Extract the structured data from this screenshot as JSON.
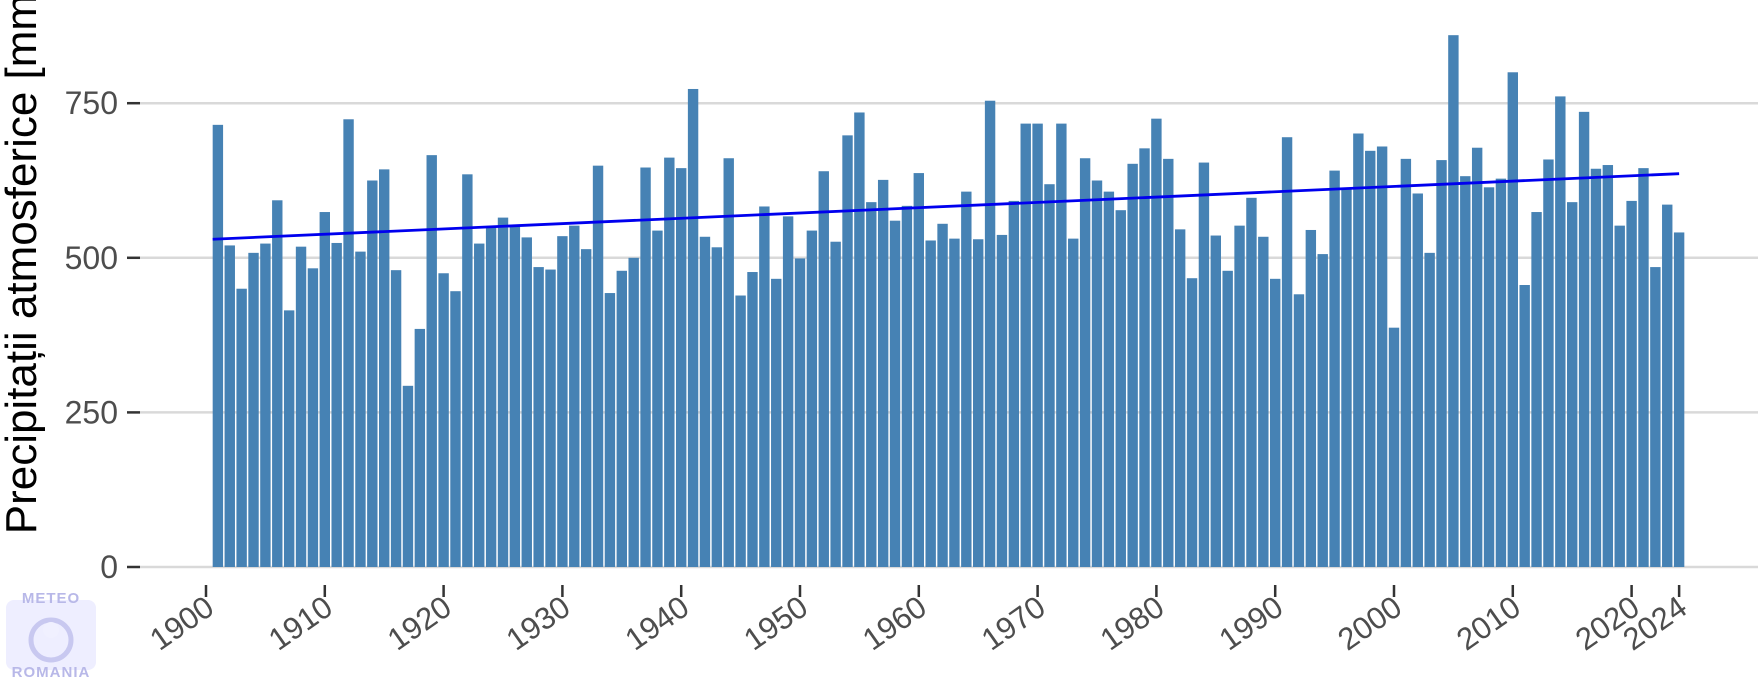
{
  "colors": {
    "bar": "#4682b4",
    "trend": "#0000ee",
    "grid": "#d9d9d9",
    "tick_text": "#4d4d4d"
  },
  "logo": {
    "top": "METEO",
    "bottom": "ROMANIA",
    "icon": "meteo-romania-logo-icon"
  },
  "chart_data": {
    "type": "bar",
    "title": "",
    "xlabel": "",
    "ylabel": "Precipitații atmosferice [mm]",
    "ylim": [
      0,
      900
    ],
    "xlim": [
      1900,
      2024
    ],
    "yticks": [
      0,
      250,
      500,
      750
    ],
    "ytick_labels": [
      "0",
      "250",
      "500",
      "750"
    ],
    "xticks": [
      1900,
      1910,
      1920,
      1930,
      1940,
      1950,
      1960,
      1970,
      1980,
      1990,
      2000,
      2010,
      2020,
      2024
    ],
    "xtick_labels": [
      "1900",
      "1910",
      "1920",
      "1930",
      "1940",
      "1950",
      "1960",
      "1970",
      "1980",
      "1990",
      "2000",
      "2010",
      "2020",
      "2024"
    ],
    "grid": "horizontal",
    "legend": "none",
    "x": [
      1901,
      1902,
      1903,
      1904,
      1905,
      1906,
      1907,
      1908,
      1909,
      1910,
      1911,
      1912,
      1913,
      1914,
      1915,
      1916,
      1917,
      1918,
      1919,
      1920,
      1921,
      1922,
      1923,
      1924,
      1925,
      1926,
      1927,
      1928,
      1929,
      1930,
      1931,
      1932,
      1933,
      1934,
      1935,
      1936,
      1937,
      1938,
      1939,
      1940,
      1941,
      1942,
      1943,
      1944,
      1945,
      1946,
      1947,
      1948,
      1949,
      1950,
      1951,
      1952,
      1953,
      1954,
      1955,
      1956,
      1957,
      1958,
      1959,
      1960,
      1961,
      1962,
      1963,
      1964,
      1965,
      1966,
      1967,
      1968,
      1969,
      1970,
      1971,
      1972,
      1973,
      1974,
      1975,
      1976,
      1977,
      1978,
      1979,
      1980,
      1981,
      1982,
      1983,
      1984,
      1985,
      1986,
      1987,
      1988,
      1989,
      1990,
      1991,
      1992,
      1993,
      1994,
      1995,
      1996,
      1997,
      1998,
      1999,
      2000,
      2001,
      2002,
      2003,
      2004,
      2005,
      2006,
      2007,
      2008,
      2009,
      2010,
      2011,
      2012,
      2013,
      2014,
      2015,
      2016,
      2017,
      2018,
      2019,
      2020,
      2021,
      2022,
      2023,
      2024
    ],
    "values": [
      715,
      520,
      450,
      508,
      523,
      593,
      415,
      518,
      483,
      574,
      524,
      724,
      510,
      625,
      643,
      480,
      293,
      385,
      666,
      475,
      446,
      635,
      523,
      551,
      565,
      550,
      533,
      485,
      481,
      535,
      552,
      514,
      649,
      443,
      479,
      500,
      646,
      544,
      662,
      645,
      773,
      534,
      517,
      661,
      439,
      477,
      583,
      466,
      567,
      499,
      544,
      640,
      526,
      698,
      735,
      590,
      626,
      560,
      584,
      637,
      528,
      555,
      531,
      607,
      530,
      754,
      537,
      592,
      717,
      717,
      619,
      717,
      531,
      661,
      625,
      607,
      577,
      652,
      677,
      725,
      660,
      546,
      467,
      654,
      536,
      479,
      552,
      597,
      534,
      466,
      695,
      441,
      545,
      506,
      641,
      612,
      701,
      673,
      680,
      387,
      660,
      604,
      508,
      658,
      860,
      632,
      678,
      614,
      628,
      800,
      456,
      574,
      659,
      761,
      590,
      736,
      644,
      650,
      552,
      592,
      645,
      485,
      586,
      541
    ],
    "trend": {
      "x": [
        1901,
        2024
      ],
      "y": [
        530,
        636
      ]
    }
  }
}
